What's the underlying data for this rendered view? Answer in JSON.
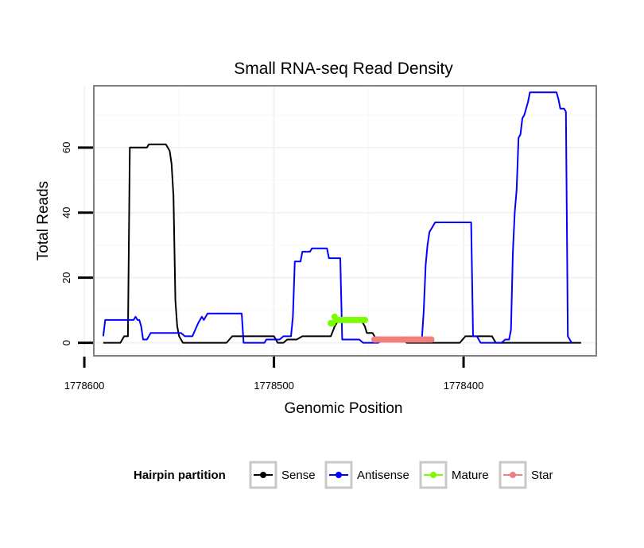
{
  "chart_data": {
    "type": "line",
    "title": "Small RNA-seq Read Density",
    "xlabel": "Genomic Position",
    "ylabel": "Total Reads",
    "x_reversed": true,
    "xlim": [
      1778595,
      1778330
    ],
    "ylim": [
      -4,
      79
    ],
    "x_ticks": [
      1778600,
      1778500,
      1778400
    ],
    "y_ticks": [
      0,
      20,
      40,
      60
    ],
    "grid": true,
    "legend_position": "bottom",
    "legend": {
      "title": "Hairpin partition",
      "entries": [
        {
          "name": "Sense",
          "color": "#000000"
        },
        {
          "name": "Antisense",
          "color": "#0000ff"
        },
        {
          "name": "Mature",
          "color": "#7cfc00"
        },
        {
          "name": "Star",
          "color": "#f08080"
        }
      ]
    },
    "series": [
      {
        "name": "Sense",
        "color": "#000000",
        "points": [
          [
            1778590,
            0
          ],
          [
            1778581,
            0
          ],
          [
            1778579,
            2
          ],
          [
            1778577,
            2
          ],
          [
            1778576,
            60
          ],
          [
            1778567,
            60
          ],
          [
            1778566,
            61
          ],
          [
            1778557,
            61
          ],
          [
            1778555,
            59
          ],
          [
            1778554,
            55
          ],
          [
            1778553,
            45
          ],
          [
            1778552,
            13
          ],
          [
            1778551,
            5
          ],
          [
            1778550,
            2
          ],
          [
            1778548,
            0
          ],
          [
            1778525,
            0
          ],
          [
            1778522,
            2
          ],
          [
            1778500,
            2
          ],
          [
            1778498,
            0
          ],
          [
            1778495,
            0
          ],
          [
            1778493,
            1
          ],
          [
            1778488,
            1
          ],
          [
            1778485,
            2
          ],
          [
            1778470,
            2
          ],
          [
            1778468,
            5
          ],
          [
            1778466,
            7
          ],
          [
            1778454,
            7
          ],
          [
            1778452,
            5
          ],
          [
            1778451,
            3
          ],
          [
            1778448,
            3
          ],
          [
            1778446,
            1
          ],
          [
            1778432,
            1
          ],
          [
            1778430,
            0
          ],
          [
            1778402,
            0
          ],
          [
            1778399,
            2
          ],
          [
            1778385,
            2
          ],
          [
            1778383,
            0
          ],
          [
            1778338,
            0
          ]
        ]
      },
      {
        "name": "Antisense",
        "color": "#0000ff",
        "points": [
          [
            1778590,
            2
          ],
          [
            1778589,
            7
          ],
          [
            1778574,
            7
          ],
          [
            1778573,
            8
          ],
          [
            1778572,
            7
          ],
          [
            1778571,
            7
          ],
          [
            1778570,
            5
          ],
          [
            1778569,
            1
          ],
          [
            1778567,
            1
          ],
          [
            1778565,
            3
          ],
          [
            1778549,
            3
          ],
          [
            1778547,
            2
          ],
          [
            1778543,
            2
          ],
          [
            1778540,
            6
          ],
          [
            1778538,
            8
          ],
          [
            1778537,
            7
          ],
          [
            1778535,
            9
          ],
          [
            1778517,
            9
          ],
          [
            1778516,
            0
          ],
          [
            1778505,
            0
          ],
          [
            1778504,
            1
          ],
          [
            1778497,
            1
          ],
          [
            1778495,
            2
          ],
          [
            1778491,
            2
          ],
          [
            1778490,
            8
          ],
          [
            1778489,
            25
          ],
          [
            1778486,
            25
          ],
          [
            1778485,
            28
          ],
          [
            1778481,
            28
          ],
          [
            1778480,
            29
          ],
          [
            1778472,
            29
          ],
          [
            1778471,
            26
          ],
          [
            1778465,
            26
          ],
          [
            1778464,
            1
          ],
          [
            1778455,
            1
          ],
          [
            1778453,
            0
          ],
          [
            1778445,
            0
          ],
          [
            1778442,
            1
          ],
          [
            1778422,
            1
          ],
          [
            1778421,
            10
          ],
          [
            1778420,
            24
          ],
          [
            1778419,
            30
          ],
          [
            1778418,
            34
          ],
          [
            1778416,
            36
          ],
          [
            1778415,
            37
          ],
          [
            1778396,
            37
          ],
          [
            1778395,
            2
          ],
          [
            1778393,
            2
          ],
          [
            1778391,
            0
          ],
          [
            1778380,
            0
          ],
          [
            1778378,
            1
          ],
          [
            1778376,
            1
          ],
          [
            1778375,
            4
          ],
          [
            1778374,
            28
          ],
          [
            1778373,
            40
          ],
          [
            1778372,
            47
          ],
          [
            1778371,
            63
          ],
          [
            1778370,
            64
          ],
          [
            1778369,
            69
          ],
          [
            1778368,
            70
          ],
          [
            1778366,
            74
          ],
          [
            1778365,
            77
          ],
          [
            1778351,
            77
          ],
          [
            1778350,
            75
          ],
          [
            1778349,
            72
          ],
          [
            1778347,
            72
          ],
          [
            1778346,
            71
          ],
          [
            1778345,
            2
          ],
          [
            1778344,
            1
          ],
          [
            1778343,
            0
          ]
        ]
      },
      {
        "name": "Mature",
        "color": "#7cfc00",
        "marker": "circle",
        "points": [
          [
            1778470,
            6
          ],
          [
            1778469,
            6
          ],
          [
            1778468,
            8
          ],
          [
            1778467,
            7
          ],
          [
            1778466,
            7
          ],
          [
            1778465,
            7
          ],
          [
            1778464,
            7
          ],
          [
            1778463,
            7
          ],
          [
            1778462,
            7
          ],
          [
            1778461,
            7
          ],
          [
            1778460,
            7
          ],
          [
            1778459,
            7
          ],
          [
            1778458,
            7
          ],
          [
            1778457,
            7
          ],
          [
            1778456,
            7
          ],
          [
            1778455,
            7
          ],
          [
            1778454,
            7
          ],
          [
            1778453,
            7
          ],
          [
            1778452,
            7
          ]
        ]
      },
      {
        "name": "Star",
        "color": "#f08080",
        "marker": "circle",
        "points": [
          [
            1778447,
            1
          ],
          [
            1778446,
            1
          ],
          [
            1778445,
            1
          ],
          [
            1778444,
            1
          ],
          [
            1778443,
            1
          ],
          [
            1778442,
            1
          ],
          [
            1778441,
            1
          ],
          [
            1778440,
            1
          ],
          [
            1778439,
            1
          ],
          [
            1778438,
            1
          ],
          [
            1778437,
            1
          ],
          [
            1778436,
            1
          ],
          [
            1778435,
            1
          ],
          [
            1778434,
            1
          ],
          [
            1778433,
            1
          ],
          [
            1778432,
            1
          ],
          [
            1778431,
            1
          ],
          [
            1778430,
            1
          ],
          [
            1778429,
            1
          ],
          [
            1778428,
            1
          ],
          [
            1778427,
            1
          ],
          [
            1778426,
            1
          ],
          [
            1778425,
            1
          ],
          [
            1778424,
            1
          ],
          [
            1778423,
            1
          ],
          [
            1778422,
            1
          ],
          [
            1778421,
            1
          ],
          [
            1778420,
            1
          ],
          [
            1778419,
            1
          ],
          [
            1778418,
            1
          ],
          [
            1778417,
            1
          ]
        ]
      }
    ]
  }
}
